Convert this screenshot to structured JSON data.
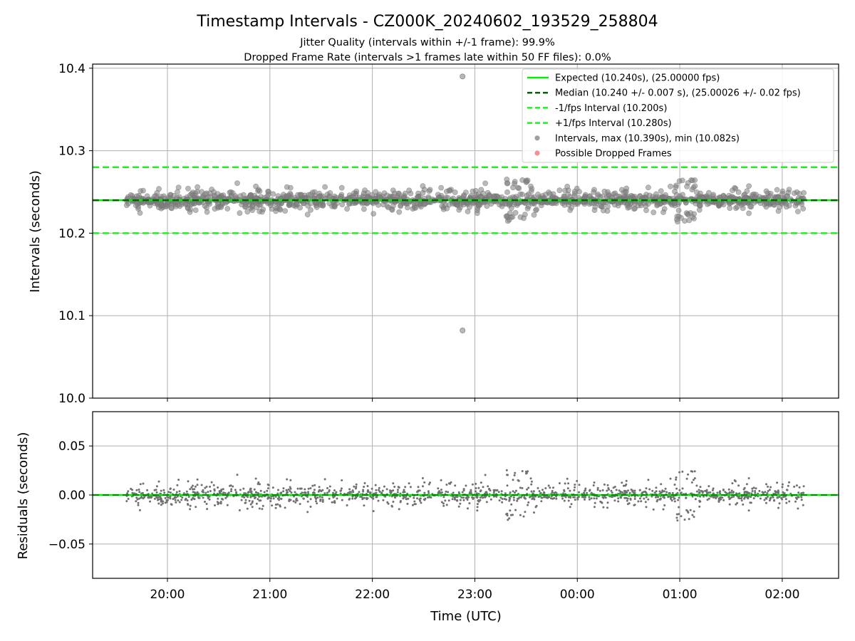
{
  "chart_data": [
    {
      "type": "scatter",
      "title": "Timestamp Intervals - CZ000K_20240602_193529_258804",
      "subtitle_lines": [
        "Jitter Quality (intervals within +/-1 frame): 99.9%",
        "Dropped Frame Rate (intervals >1 frames late within 50 FF files): 0.0%"
      ],
      "ylabel": "Intervals (seconds)",
      "ylim": [
        10.0,
        10.405
      ],
      "yticks": [
        10.0,
        10.1,
        10.2,
        10.3,
        10.4
      ],
      "ytick_labels": [
        "10.0",
        "10.1",
        "10.2",
        "10.3",
        "10.4"
      ],
      "grid": true,
      "legend_position": "top-right",
      "reference_lines": [
        {
          "name": "Expected (10.240s), (25.00000 fps)",
          "y": 10.24,
          "color": "#00ee00",
          "style": "solid"
        },
        {
          "name": "Median (10.240 +/- 0.007 s), (25.00026 +/- 0.02 fps)",
          "y": 10.24,
          "color": "#006400",
          "style": "dashed"
        },
        {
          "name": "-1/fps Interval (10.200s)",
          "y": 10.2,
          "color": "#22ee22",
          "style": "dashed"
        },
        {
          "name": "+1/fps Interval (10.280s)",
          "y": 10.28,
          "color": "#22ee22",
          "style": "dashed"
        }
      ],
      "series": [
        {
          "name": "Intervals, max (10.390s), min (10.082s)",
          "color": "#808080",
          "marker": "circle"
        },
        {
          "name": "Possible Dropped Frames",
          "color": "#f26b6b",
          "marker": "circle",
          "values": []
        }
      ],
      "center": 10.24,
      "spread": 0.007,
      "outliers": [
        {
          "x": 22.88,
          "y": 10.39
        },
        {
          "x": 22.88,
          "y": 10.082
        }
      ]
    },
    {
      "type": "scatter",
      "ylabel": "Residuals (seconds)",
      "xlabel": "Time (UTC)",
      "ylim": [
        -0.085,
        0.085
      ],
      "yticks": [
        -0.05,
        0.0,
        0.05
      ],
      "ytick_labels": [
        "−0.05",
        "0.00",
        "0.05"
      ],
      "grid": true,
      "zero_line_color": "#00ee00",
      "point_color": "#707070"
    }
  ],
  "x_axis": {
    "xlim": [
      19.27,
      26.55
    ],
    "range": [
      19.6,
      26.22
    ],
    "ticks": [
      20,
      21,
      22,
      23,
      24,
      25,
      26
    ],
    "tick_labels": [
      "20:00",
      "21:00",
      "22:00",
      "23:00",
      "00:00",
      "01:00",
      "02:00"
    ]
  },
  "seed": 258804
}
